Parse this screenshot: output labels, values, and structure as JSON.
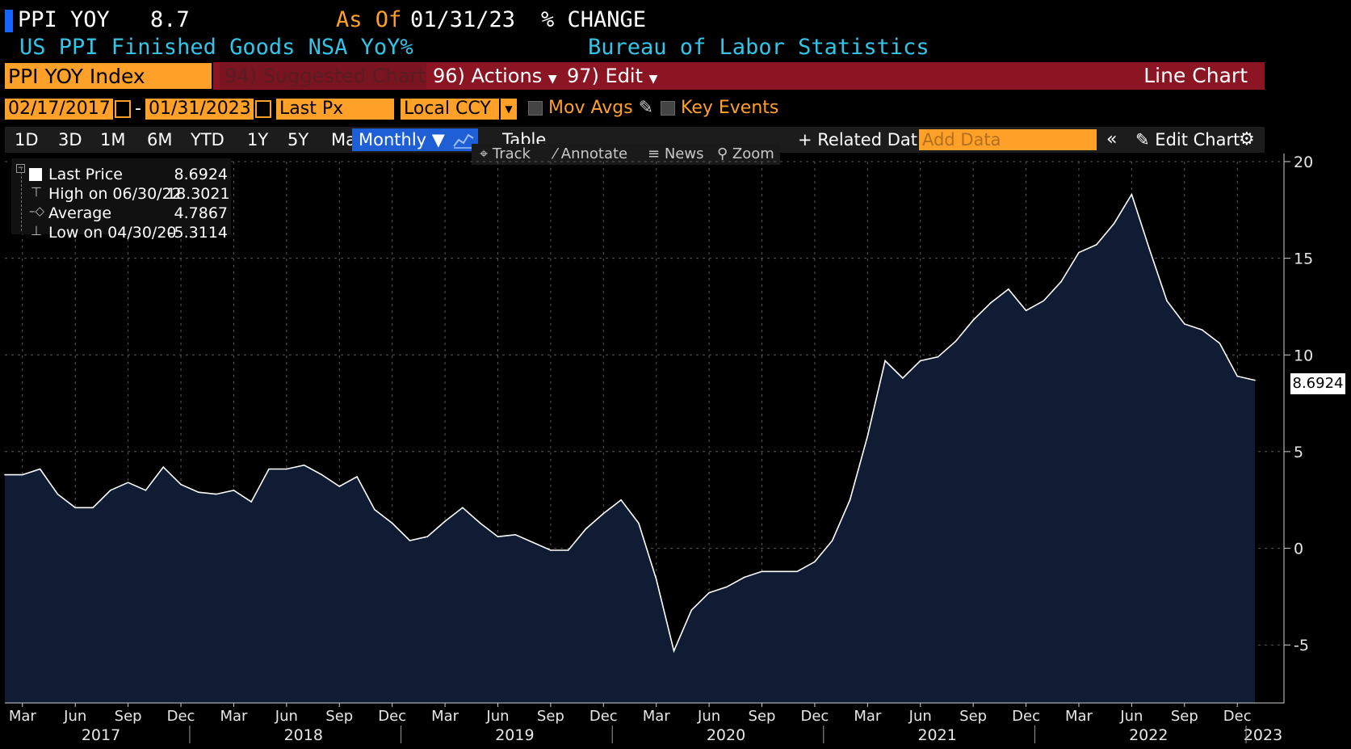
{
  "header": {
    "ticker": "PPI YOY",
    "value": "8.7",
    "as_of_label": "As Of",
    "as_of_date": "01/31/23",
    "change_label": "% CHANGE",
    "subtitle": "US PPI Finished Goods NSA YoY%",
    "source": "Bureau of Labor Statistics"
  },
  "toolbar1": {
    "security": "PPI YOY Index",
    "suggested": "94) Suggested Charts",
    "actions": "96) Actions",
    "edit": "97) Edit",
    "chart_type": "Line Chart"
  },
  "toolbar2": {
    "start_date": "02/17/2017",
    "end_date": "01/31/2023",
    "field": "Last Px",
    "currency": "Local CCY",
    "mov_avgs": "Mov Avgs",
    "key_events": "Key Events"
  },
  "toolbar3": {
    "ranges": [
      "1D",
      "3D",
      "1M",
      "6M",
      "YTD",
      "1Y",
      "5Y",
      "Max"
    ],
    "frequency": "Monthly",
    "table": "Table",
    "related": "+ Related Dat",
    "add_data_placeholder": "Add Data",
    "edit_chart": "Edit Chart"
  },
  "chart_tools": [
    "Track",
    "Annotate",
    "News",
    "Zoom"
  ],
  "legend": {
    "last_label": "Last Price",
    "last_value": "8.6924",
    "high_label": "High on 06/30/22",
    "high_value": "18.3021",
    "avg_label": "Average",
    "avg_value": "4.7867",
    "low_label": "Low on 04/30/20",
    "low_value": "-5.3114"
  },
  "last_price_tag": "8.6924",
  "colors": {
    "area_fill": "#0f1c33",
    "line": "#ffffff",
    "orange": "#ffa028",
    "red_bar": "#8b1522",
    "cyan_text": "#33c4e8"
  },
  "chart_data": {
    "type": "area",
    "x": [
      "2017-02",
      "2017-03",
      "2017-04",
      "2017-05",
      "2017-06",
      "2017-07",
      "2017-08",
      "2017-09",
      "2017-10",
      "2017-11",
      "2017-12",
      "2018-01",
      "2018-02",
      "2018-03",
      "2018-04",
      "2018-05",
      "2018-06",
      "2018-07",
      "2018-08",
      "2018-09",
      "2018-10",
      "2018-11",
      "2018-12",
      "2019-01",
      "2019-02",
      "2019-03",
      "2019-04",
      "2019-05",
      "2019-06",
      "2019-07",
      "2019-08",
      "2019-09",
      "2019-10",
      "2019-11",
      "2019-12",
      "2020-01",
      "2020-02",
      "2020-03",
      "2020-04",
      "2020-05",
      "2020-06",
      "2020-07",
      "2020-08",
      "2020-09",
      "2020-10",
      "2020-11",
      "2020-12",
      "2021-01",
      "2021-02",
      "2021-03",
      "2021-04",
      "2021-05",
      "2021-06",
      "2021-07",
      "2021-08",
      "2021-09",
      "2021-10",
      "2021-11",
      "2021-12",
      "2022-01",
      "2022-02",
      "2022-03",
      "2022-04",
      "2022-05",
      "2022-06",
      "2022-07",
      "2022-08",
      "2022-09",
      "2022-10",
      "2022-11",
      "2022-12",
      "2023-01"
    ],
    "values": [
      3.8,
      3.8,
      4.1,
      2.8,
      2.1,
      2.1,
      3.0,
      3.4,
      3.0,
      4.2,
      3.3,
      2.9,
      2.8,
      3.0,
      2.4,
      4.1,
      4.1,
      4.3,
      3.8,
      3.2,
      3.7,
      2.0,
      1.3,
      0.4,
      0.6,
      1.4,
      2.1,
      1.3,
      0.6,
      0.7,
      0.3,
      -0.1,
      -0.1,
      1.0,
      1.8,
      2.5,
      1.3,
      -1.6,
      -5.3114,
      -3.2,
      -2.3,
      -2.0,
      -1.5,
      -1.2,
      -1.2,
      -1.2,
      -0.7,
      0.4,
      2.5,
      5.8,
      9.7,
      8.8,
      9.7,
      9.9,
      10.7,
      11.8,
      12.7,
      13.4,
      12.3,
      12.8,
      13.8,
      15.3,
      15.7,
      16.8,
      18.3021,
      15.5,
      12.8,
      11.6,
      11.3,
      10.6,
      8.9,
      8.6924
    ],
    "ylim": [
      -8,
      20
    ],
    "yticks": [
      -5,
      0,
      5,
      10,
      15,
      20
    ],
    "month_ticks": [
      "Mar",
      "Jun",
      "Sep",
      "Dec",
      "Mar",
      "Jun",
      "Sep",
      "Dec",
      "Mar",
      "Jun",
      "Sep",
      "Dec",
      "Mar",
      "Jun",
      "Sep",
      "Dec",
      "Mar",
      "Jun",
      "Sep",
      "Dec",
      "Mar",
      "Jun",
      "Sep",
      "Dec"
    ],
    "year_ticks": [
      "2017",
      "2018",
      "2019",
      "2020",
      "2021",
      "2022",
      "2023"
    ],
    "grid": true
  }
}
